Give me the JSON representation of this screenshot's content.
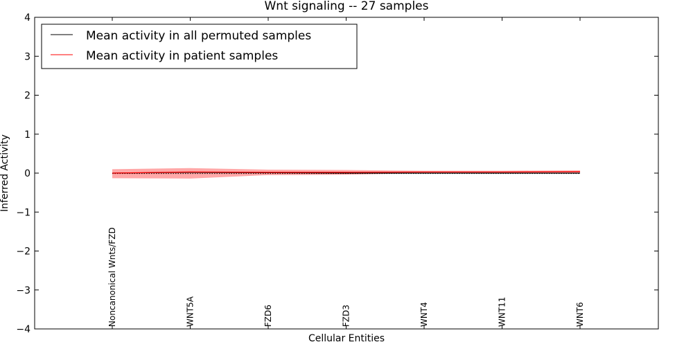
{
  "chart_data": {
    "type": "line",
    "title": "Wnt signaling -- 27 samples",
    "xlabel": "Cellular Entities",
    "ylabel": "Inferred Activity",
    "ylim": [
      -4,
      4
    ],
    "yticks": [
      4,
      3,
      2,
      1,
      0,
      -1,
      -2,
      -3,
      -4
    ],
    "ytick_labels": [
      "4",
      "3",
      "2",
      "1",
      "0",
      "−1",
      "−2",
      "−3",
      "−4"
    ],
    "categories": [
      "Noncanonical Wnts/FZD",
      "WNT5A",
      "FZD6",
      "FZD3",
      "WNT4",
      "WNT11",
      "WNT6"
    ],
    "legend_position": "top-left",
    "series": [
      {
        "name": "Mean activity in all permuted samples",
        "color": "#000000",
        "values": [
          0.0,
          0.02,
          0.01,
          0.0,
          0.0,
          0.0,
          0.0
        ]
      },
      {
        "name": "Mean activity in patient samples",
        "color": "#ff0000",
        "values": [
          0.0,
          0.03,
          0.02,
          0.02,
          0.03,
          0.03,
          0.04
        ]
      }
    ],
    "band": {
      "name": "patient spread",
      "color": "#ff9999",
      "lower": [
        -0.13,
        -0.14,
        -0.05,
        -0.04,
        0.0,
        0.01,
        0.01
      ],
      "upper": [
        0.1,
        0.13,
        0.09,
        0.08,
        0.06,
        0.06,
        0.07
      ]
    },
    "baseline": {
      "color": "#000000",
      "values": [
        -0.01,
        -0.01,
        -0.01,
        -0.01,
        -0.01,
        -0.01,
        -0.01
      ]
    }
  }
}
